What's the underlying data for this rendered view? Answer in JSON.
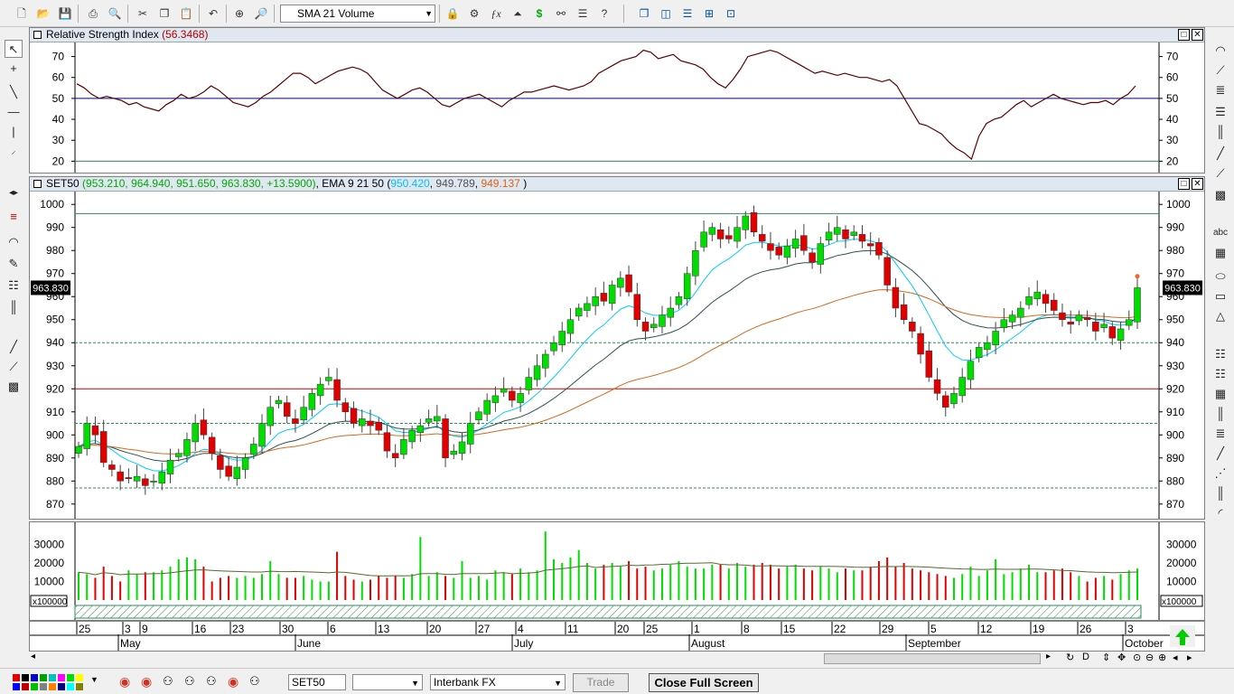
{
  "toolbar": {
    "indicator_select": "SMA 21 Volume",
    "icons": [
      "new-icon",
      "open-icon",
      "save-icon",
      "print-icon",
      "print-preview-icon",
      "cut-icon",
      "copy-icon",
      "paste-icon",
      "undo-icon",
      "crosshair-icon",
      "zoom-icon",
      "lock-icon",
      "wizard-icon",
      "formula-icon",
      "chart-icon",
      "dollar-icon",
      "binoculars-icon",
      "list-icon",
      "help-icon"
    ]
  },
  "rsi": {
    "title": "Relative Strength Index",
    "value": "(56.3468)",
    "ticks": [
      "70",
      "60",
      "50",
      "40",
      "30",
      "20"
    ],
    "series": [
      57,
      55,
      52,
      50,
      51,
      50,
      49,
      47,
      48,
      46,
      45,
      44,
      47,
      49,
      52,
      50,
      51,
      53,
      56,
      54,
      51,
      48,
      47,
      46,
      48,
      51,
      53,
      56,
      59,
      62,
      62,
      60,
      57,
      59,
      61,
      63,
      64,
      65,
      64,
      62,
      58,
      54,
      52,
      50,
      52,
      54,
      55,
      53,
      50,
      47,
      46,
      48,
      50,
      51,
      52,
      50,
      48,
      46,
      49,
      51,
      53,
      53,
      54,
      55,
      56,
      55,
      54,
      55,
      56,
      58,
      62,
      64,
      66,
      68,
      69,
      70,
      73,
      72,
      69,
      70,
      71,
      68,
      67,
      66,
      64,
      60,
      57,
      55,
      59,
      64,
      70,
      71,
      72,
      73,
      72,
      70,
      68,
      66,
      64,
      62,
      63,
      62,
      61,
      62,
      61,
      60,
      60,
      59,
      58,
      59,
      56,
      50,
      44,
      38,
      37,
      35,
      33,
      29,
      26,
      24,
      21,
      32,
      38,
      40,
      41,
      44,
      47,
      49,
      46,
      48,
      50,
      52,
      50,
      49,
      48,
      47,
      48,
      48,
      49,
      47,
      50,
      52,
      56
    ],
    "levels": {
      "high": 50,
      "low": 20
    }
  },
  "main": {
    "symbol": "SET50",
    "ohlc": "(953.210, 964.940, 951.650, 963.830, +13.5900)",
    "ema_label": "EMA 9 21 50",
    "ema_open": "(",
    "ema9": "950.420",
    "ema21": "949.789",
    "ema50": "949.137",
    "ema_close": ")",
    "price_tag": "963.830",
    "price_ticks": [
      "1000",
      "990",
      "980",
      "970",
      "960",
      "950",
      "940",
      "930",
      "920",
      "910",
      "900",
      "890",
      "880",
      "870"
    ],
    "ylim": [
      866,
      1004
    ],
    "last_price": 963.83,
    "hlines": [
      {
        "value": 996,
        "color": "#2e8b57",
        "style": "solid"
      },
      {
        "value": 940,
        "color": "#2e8b57",
        "style": "dashed"
      },
      {
        "value": 920,
        "color": "#d00000",
        "style": "solid"
      },
      {
        "value": 905,
        "color": "#2e8b57",
        "style": "dashed"
      },
      {
        "value": 877,
        "color": "#2e8b57",
        "style": "dashed"
      }
    ]
  },
  "chart_data": {
    "type": "candlestick",
    "closes": [
      895,
      905,
      900,
      888,
      885,
      880,
      881,
      882,
      878,
      880,
      884,
      889,
      892,
      898,
      905,
      900,
      892,
      885,
      882,
      886,
      890,
      896,
      905,
      912,
      915,
      908,
      905,
      912,
      918,
      922,
      925,
      915,
      910,
      905,
      907,
      904,
      902,
      893,
      890,
      898,
      902,
      904,
      907,
      908,
      890,
      893,
      897,
      905,
      910,
      915,
      917,
      920,
      915,
      918,
      925,
      930,
      935,
      940,
      945,
      950,
      955,
      957,
      960,
      958,
      965,
      968,
      962,
      950,
      945,
      948,
      952,
      955,
      960,
      970,
      980,
      988,
      990,
      985,
      985,
      990,
      995,
      988,
      984,
      980,
      978,
      982,
      985,
      980,
      975,
      983,
      988,
      990,
      985,
      988,
      984,
      982,
      978,
      965,
      955,
      950,
      945,
      935,
      925,
      918,
      912,
      918,
      925,
      932,
      938,
      940,
      945,
      950,
      952,
      955,
      960,
      962,
      957,
      954,
      950,
      948,
      952,
      950,
      945,
      948,
      942,
      946,
      950,
      963.83
    ],
    "volume_ticks": [
      "30000",
      "20000",
      "10000"
    ],
    "volume_unit": "x100000",
    "volume": [
      15000,
      14000,
      12000,
      18000,
      13000,
      10000,
      16000,
      14000,
      15000,
      15000,
      16000,
      18000,
      22000,
      23000,
      22000,
      18000,
      10000,
      12000,
      13000,
      12000,
      13000,
      12000,
      14000,
      21000,
      14000,
      12000,
      12000,
      13000,
      11000,
      10000,
      10000,
      26000,
      13000,
      11000,
      10000,
      11000,
      13000,
      12000,
      13000,
      12000,
      14000,
      34000,
      13000,
      15000,
      13000,
      12000,
      21000,
      12000,
      13000,
      11000,
      16000,
      15000,
      14000,
      17000,
      15000,
      16000,
      37000,
      22000,
      20000,
      23000,
      27000,
      20000,
      17000,
      19000,
      20000,
      18000,
      21000,
      17000,
      18000,
      16000,
      17000,
      19000,
      21000,
      18000,
      17000,
      17000,
      19000,
      19000,
      17000,
      20000,
      18000,
      19000,
      20000,
      19000,
      17000,
      18000,
      19000,
      17000,
      16000,
      18000,
      17000,
      15000,
      17000,
      16000,
      16000,
      18000,
      21000,
      23000,
      18000,
      20000,
      17000,
      16000,
      15000,
      14000,
      13000,
      12000,
      14000,
      18000,
      13000,
      16000,
      22000,
      14000,
      15000,
      17000,
      19000,
      15000,
      15000,
      16000,
      17000,
      15000,
      13000,
      10000,
      12000,
      13000,
      11000,
      14000,
      16000,
      17000
    ]
  },
  "volume_pane": {
    "ticks": [
      "30000",
      "20000",
      "10000"
    ],
    "unit": "x100000"
  },
  "xaxis": {
    "days": [
      "25",
      "3",
      "9",
      "16",
      "23",
      "30",
      "6",
      "13",
      "20",
      "27",
      "4",
      "11",
      "20",
      "25",
      "1",
      "8",
      "15",
      "22",
      "29",
      "5",
      "12",
      "19",
      "26",
      "3"
    ],
    "months": [
      "May",
      "June",
      "July",
      "August",
      "September",
      "October"
    ]
  },
  "statusbar": {
    "symbol": "SET50",
    "source": "Interbank FX",
    "trade_label": "Trade",
    "fullscreen_label": "Close Full Screen"
  },
  "colors": {
    "rsi_line": "#5a0000",
    "up_candle": "#00dd00",
    "down_candle": "#e00000",
    "ema9": "#00ccff",
    "ema21": "#2f4f4f",
    "ema50": "#d2691e",
    "volume_avg": "#556b2f"
  }
}
